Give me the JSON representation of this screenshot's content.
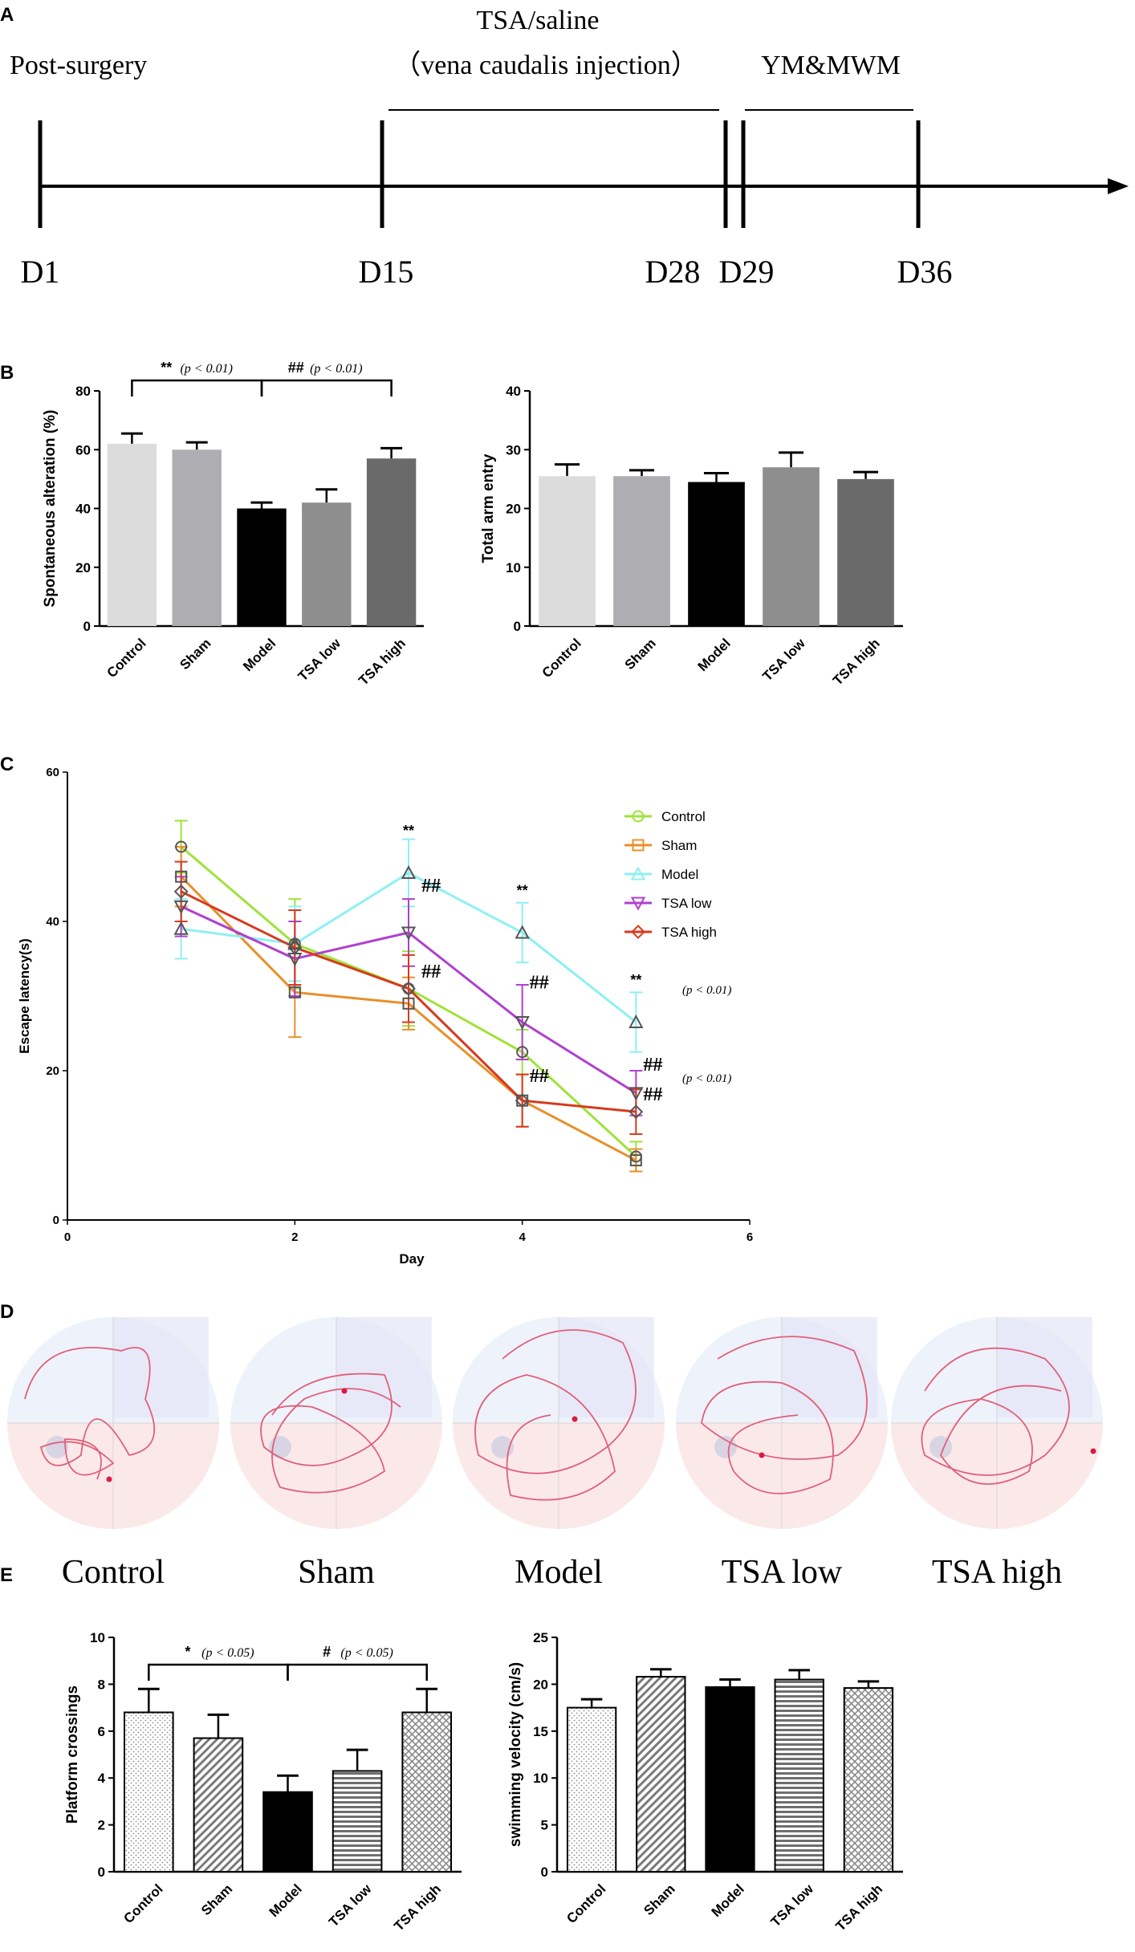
{
  "panels": {
    "A": {
      "letter": "A",
      "post_surgery": "Post-surgery",
      "tsa_title": "TSA/saline",
      "tsa_subtitle": "（vena caudalis injection）",
      "ym_mwm": "YM&MWM",
      "days": [
        "D1",
        "D15",
        "D28",
        "D29",
        "D36"
      ]
    },
    "B": {
      "letter": "B"
    },
    "C": {
      "letter": "C"
    },
    "D": {
      "letter": "D",
      "labels": [
        "Control",
        "Sham",
        "Model",
        "TSA low",
        "TSA high"
      ]
    },
    "E": {
      "letter": "E"
    }
  },
  "colors": {
    "line_control": "#9ee33a",
    "line_sham": "#e8902a",
    "line_model": "#8ef0f2",
    "line_tsa_low": "#b03fd0",
    "line_tsa_high": "#d73a1e",
    "pool_blue": "#eef2fb",
    "pool_pink": "#fbe9ea",
    "path": "#e0607a"
  },
  "chart_data": [
    {
      "id": "B_left",
      "type": "bar",
      "categories": [
        "Control",
        "Sham",
        "Model",
        "TSA low",
        "TSA high"
      ],
      "values": [
        62,
        60,
        40,
        42,
        57
      ],
      "errors": [
        3.5,
        2.5,
        2,
        4.5,
        3.5
      ],
      "ylabel": "Spontaneous alteration (%)",
      "ylim": [
        0,
        80
      ],
      "yticks": [
        0,
        20,
        40,
        60,
        80
      ],
      "bar_colors": [
        "#dcdcdc",
        "#aeaeb2",
        "#000000",
        "#8e8e8e",
        "#6a6a6a"
      ],
      "annotations": [
        {
          "stars": "**",
          "text": "(p < 0.01)",
          "from": 0,
          "to": 2
        },
        {
          "stars": "##",
          "text": "(p < 0.01)",
          "from": 2,
          "to": 4
        }
      ]
    },
    {
      "id": "B_right",
      "type": "bar",
      "categories": [
        "Control",
        "Sham",
        "Model",
        "TSA low",
        "TSA high"
      ],
      "values": [
        25.5,
        25.5,
        24.5,
        27,
        25
      ],
      "errors": [
        2,
        1,
        1.5,
        2.5,
        1.2
      ],
      "ylabel": "Total arm entry",
      "ylim": [
        0,
        40
      ],
      "yticks": [
        0,
        10,
        20,
        30,
        40
      ],
      "bar_colors": [
        "#dcdcdc",
        "#aeaeb2",
        "#000000",
        "#8e8e8e",
        "#6a6a6a"
      ]
    },
    {
      "id": "C",
      "type": "line",
      "xlabel": "Day",
      "ylabel": "Escape latency(s)",
      "xlim": [
        0,
        6
      ],
      "ylim": [
        0,
        60
      ],
      "xticks": [
        0,
        2,
        4,
        6
      ],
      "yticks": [
        0,
        20,
        40,
        60
      ],
      "x": [
        1,
        2,
        3,
        4,
        5
      ],
      "series": [
        {
          "name": "Control",
          "marker": "circle",
          "values": [
            50,
            37,
            31,
            22.5,
            8.5
          ],
          "errors": [
            3.5,
            6,
            5,
            3,
            2
          ]
        },
        {
          "name": "Sham",
          "marker": "square",
          "values": [
            46,
            30.5,
            29,
            16,
            8
          ],
          "errors": [
            4,
            6,
            3.5,
            3.5,
            1.5
          ]
        },
        {
          "name": "Model",
          "marker": "triangle",
          "values": [
            39,
            37,
            46.5,
            38.5,
            26.5
          ],
          "errors": [
            4,
            5,
            4.5,
            4,
            4
          ]
        },
        {
          "name": "TSA low",
          "marker": "triangle-down",
          "values": [
            42,
            35,
            38.5,
            26.5,
            17
          ],
          "errors": [
            4,
            5,
            4.5,
            5,
            3
          ]
        },
        {
          "name": "TSA high",
          "marker": "diamond",
          "values": [
            44,
            36.5,
            31,
            16,
            14.5
          ],
          "errors": [
            4,
            5,
            4.5,
            3.5,
            3
          ]
        }
      ],
      "annotations": [
        {
          "x": 3,
          "y": 51.5,
          "text": "**"
        },
        {
          "x": 4,
          "y": 43.5,
          "text": "**"
        },
        {
          "x": 5,
          "y": 31.5,
          "text": "**"
        },
        {
          "x": 3.1,
          "y": 44,
          "text": "##"
        },
        {
          "x": 3.1,
          "y": 32.5,
          "text": "##"
        },
        {
          "x": 4.05,
          "y": 31,
          "text": "##"
        },
        {
          "x": 4.05,
          "y": 18.5,
          "text": "##"
        },
        {
          "x": 5.05,
          "y": 20,
          "text": "##"
        },
        {
          "x": 5.05,
          "y": 16,
          "text": "##"
        }
      ],
      "pvalues": [
        "(p < 0.01)",
        "(p < 0.01)"
      ]
    },
    {
      "id": "E_left",
      "type": "bar",
      "categories": [
        "Control",
        "Sham",
        "Model",
        "TSA low",
        "TSA high"
      ],
      "values": [
        6.8,
        5.7,
        3.4,
        4.3,
        6.8
      ],
      "errors": [
        1,
        1,
        0.7,
        0.9,
        1
      ],
      "ylabel": "Platform crossings",
      "ylim": [
        0,
        10
      ],
      "yticks": [
        0,
        2,
        4,
        6,
        8,
        10
      ],
      "patterns": [
        "dots",
        "diag",
        "solid",
        "hlines",
        "cross"
      ],
      "annotations": [
        {
          "stars": "*",
          "text": "(p < 0.05)",
          "from": 0,
          "to": 2
        },
        {
          "stars": "#",
          "text": "(p < 0.05)",
          "from": 2,
          "to": 4
        }
      ]
    },
    {
      "id": "E_right",
      "type": "bar",
      "categories": [
        "Control",
        "Sham",
        "Model",
        "TSA low",
        "TSA high"
      ],
      "values": [
        17.5,
        20.8,
        19.7,
        20.5,
        19.6
      ],
      "errors": [
        0.9,
        0.8,
        0.8,
        1,
        0.7
      ],
      "ylabel": "swimming velocity  (cm/s)",
      "ylim": [
        0,
        25
      ],
      "yticks": [
        0,
        5,
        10,
        15,
        20,
        25
      ],
      "patterns": [
        "dots",
        "diag",
        "solid",
        "hlines",
        "cross"
      ]
    }
  ]
}
